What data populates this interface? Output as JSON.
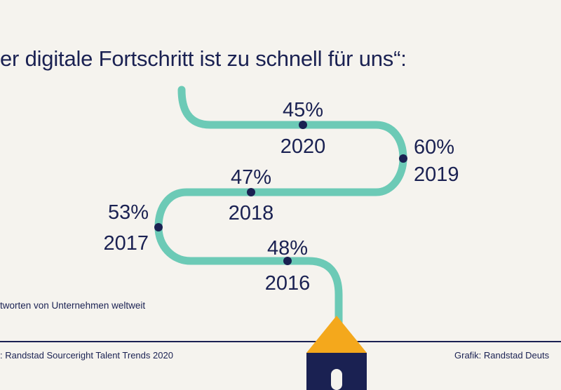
{
  "title": "er digitale Fortschritt ist zu schnell für uns“:",
  "note": "tworten von Unternehmen weltweit",
  "source": ": Randstad Sourceright Talent Trends 2020",
  "credit": "Grafik: Randstad Deuts",
  "colors": {
    "background": "#f5f3ee",
    "path": "#6ccab6",
    "text": "#1a2152",
    "dot": "#1a2152",
    "roof": "#f4a81c",
    "house": "#1a2152",
    "rule": "#1a2152"
  },
  "chart_data": {
    "type": "line",
    "title": "er digitale Fortschritt ist zu schnell für uns“:",
    "unit": "%",
    "points": [
      {
        "year": "2016",
        "value": 48,
        "label": "48%"
      },
      {
        "year": "2017",
        "value": 53,
        "label": "53%"
      },
      {
        "year": "2018",
        "value": 47,
        "label": "47%"
      },
      {
        "year": "2019",
        "value": 60,
        "label": "60%"
      },
      {
        "year": "2020",
        "value": 45,
        "label": "45%"
      }
    ]
  }
}
